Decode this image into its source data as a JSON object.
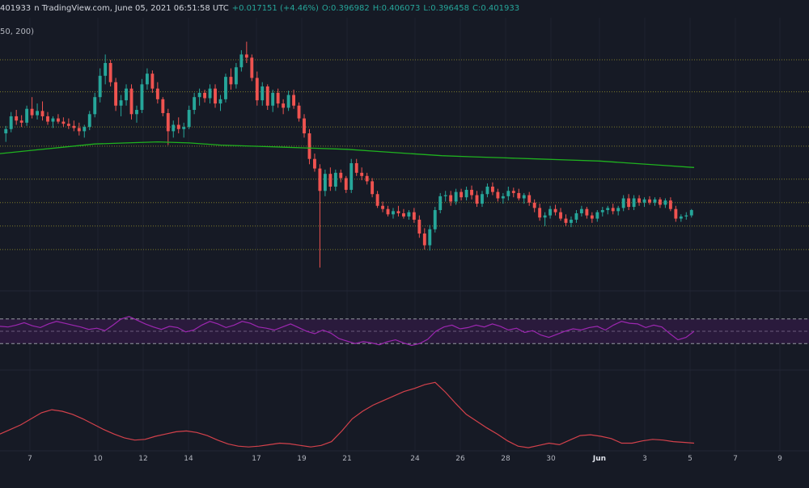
{
  "header": {
    "price_fragment": "401933",
    "source": "n TradingView.com, June 05, 2021 06:51:58 UTC",
    "change": "+0.017151 (+4.46%)",
    "o_label": "O:",
    "o_value": "0.396982",
    "h_label": "H:",
    "h_value": "0.406073",
    "l_label": "L:",
    "l_value": "0.396458",
    "c_label": "C:",
    "c_value": "0.401933"
  },
  "ma_label": "50, 200)",
  "colors": {
    "background": "#161a25",
    "up": "#26a69a",
    "down": "#ef5350",
    "ma200": "#1fb21f",
    "level_line": "#7d7a2b",
    "rsi": "#9c27b0",
    "rsi_band": "#2a1a3c",
    "lower_indicator": "#d3414b"
  },
  "chart_data": {
    "type": "candlestick",
    "x_tick_labels": [
      "7",
      "10",
      "12",
      "14",
      "17",
      "19",
      "21",
      "24",
      "26",
      "28",
      "30",
      "Jun",
      "3",
      "5",
      "7",
      "9"
    ],
    "price_panel": {
      "ylim": [
        0.33,
        0.565
      ],
      "horizontal_levels": [
        0.543,
        0.513,
        0.48,
        0.462,
        0.431,
        0.409,
        0.387,
        0.365
      ],
      "candles": [
        [
          0.474,
          0.481,
          0.466,
          0.478
        ],
        [
          0.478,
          0.494,
          0.475,
          0.49
        ],
        [
          0.49,
          0.496,
          0.482,
          0.486
        ],
        [
          0.486,
          0.491,
          0.48,
          0.484
        ],
        [
          0.484,
          0.5,
          0.481,
          0.497
        ],
        [
          0.497,
          0.508,
          0.488,
          0.491
        ],
        [
          0.491,
          0.502,
          0.487,
          0.495
        ],
        [
          0.495,
          0.504,
          0.486,
          0.49
        ],
        [
          0.49,
          0.494,
          0.482,
          0.485
        ],
        [
          0.485,
          0.49,
          0.479,
          0.488
        ],
        [
          0.488,
          0.492,
          0.483,
          0.485
        ],
        [
          0.485,
          0.489,
          0.48,
          0.483
        ],
        [
          0.483,
          0.488,
          0.478,
          0.481
        ],
        [
          0.481,
          0.486,
          0.476,
          0.479
        ],
        [
          0.479,
          0.484,
          0.472,
          0.476
        ],
        [
          0.476,
          0.482,
          0.47,
          0.48
        ],
        [
          0.48,
          0.495,
          0.477,
          0.492
        ],
        [
          0.492,
          0.512,
          0.489,
          0.508
        ],
        [
          0.508,
          0.535,
          0.503,
          0.528
        ],
        [
          0.528,
          0.548,
          0.52,
          0.54
        ],
        [
          0.54,
          0.543,
          0.518,
          0.522
        ],
        [
          0.522,
          0.526,
          0.495,
          0.5
        ],
        [
          0.5,
          0.51,
          0.49,
          0.505
        ],
        [
          0.505,
          0.52,
          0.5,
          0.516
        ],
        [
          0.516,
          0.52,
          0.487,
          0.492
        ],
        [
          0.492,
          0.5,
          0.484,
          0.496
        ],
        [
          0.496,
          0.525,
          0.493,
          0.52
        ],
        [
          0.52,
          0.535,
          0.515,
          0.53
        ],
        [
          0.53,
          0.533,
          0.512,
          0.516
        ],
        [
          0.516,
          0.522,
          0.502,
          0.506
        ],
        [
          0.506,
          0.508,
          0.49,
          0.493
        ],
        [
          0.493,
          0.497,
          0.463,
          0.476
        ],
        [
          0.476,
          0.486,
          0.47,
          0.482
        ],
        [
          0.482,
          0.489,
          0.474,
          0.478
        ],
        [
          0.478,
          0.484,
          0.47,
          0.48
        ],
        [
          0.48,
          0.5,
          0.478,
          0.496
        ],
        [
          0.496,
          0.512,
          0.492,
          0.508
        ],
        [
          0.508,
          0.516,
          0.5,
          0.512
        ],
        [
          0.512,
          0.515,
          0.503,
          0.507
        ],
        [
          0.507,
          0.52,
          0.502,
          0.516
        ],
        [
          0.516,
          0.52,
          0.498,
          0.502
        ],
        [
          0.502,
          0.51,
          0.495,
          0.506
        ],
        [
          0.506,
          0.53,
          0.503,
          0.527
        ],
        [
          0.527,
          0.535,
          0.515,
          0.52
        ],
        [
          0.52,
          0.54,
          0.516,
          0.536
        ],
        [
          0.536,
          0.552,
          0.532,
          0.548
        ],
        [
          0.548,
          0.56,
          0.54,
          0.545
        ],
        [
          0.545,
          0.548,
          0.523,
          0.526
        ],
        [
          0.526,
          0.532,
          0.5,
          0.505
        ],
        [
          0.505,
          0.522,
          0.5,
          0.518
        ],
        [
          0.518,
          0.52,
          0.496,
          0.5
        ],
        [
          0.5,
          0.515,
          0.494,
          0.512
        ],
        [
          0.512,
          0.516,
          0.498,
          0.502
        ],
        [
          0.502,
          0.506,
          0.492,
          0.498
        ],
        [
          0.498,
          0.514,
          0.495,
          0.51
        ],
        [
          0.51,
          0.515,
          0.497,
          0.5
        ],
        [
          0.5,
          0.503,
          0.485,
          0.488
        ],
        [
          0.488,
          0.492,
          0.47,
          0.474
        ],
        [
          0.474,
          0.478,
          0.445,
          0.45
        ],
        [
          0.45,
          0.455,
          0.438,
          0.441
        ],
        [
          0.441,
          0.445,
          0.348,
          0.42
        ],
        [
          0.42,
          0.44,
          0.415,
          0.436
        ],
        [
          0.436,
          0.442,
          0.42,
          0.424
        ],
        [
          0.424,
          0.44,
          0.42,
          0.437
        ],
        [
          0.437,
          0.44,
          0.428,
          0.432
        ],
        [
          0.432,
          0.434,
          0.418,
          0.421
        ],
        [
          0.421,
          0.45,
          0.418,
          0.446
        ],
        [
          0.446,
          0.45,
          0.434,
          0.437
        ],
        [
          0.437,
          0.442,
          0.43,
          0.434
        ],
        [
          0.434,
          0.437,
          0.426,
          0.429
        ],
        [
          0.429,
          0.432,
          0.414,
          0.417
        ],
        [
          0.417,
          0.42,
          0.404,
          0.406
        ],
        [
          0.406,
          0.41,
          0.4,
          0.403
        ],
        [
          0.403,
          0.406,
          0.396,
          0.398
        ],
        [
          0.398,
          0.404,
          0.394,
          0.401
        ],
        [
          0.401,
          0.406,
          0.396,
          0.399
        ],
        [
          0.399,
          0.403,
          0.394,
          0.396
        ],
        [
          0.396,
          0.402,
          0.393,
          0.4
        ],
        [
          0.4,
          0.404,
          0.39,
          0.393
        ],
        [
          0.393,
          0.397,
          0.376,
          0.38
        ],
        [
          0.38,
          0.385,
          0.365,
          0.369
        ],
        [
          0.369,
          0.388,
          0.364,
          0.384
        ],
        [
          0.384,
          0.405,
          0.381,
          0.402
        ],
        [
          0.402,
          0.418,
          0.399,
          0.415
        ],
        [
          0.415,
          0.42,
          0.41,
          0.416
        ],
        [
          0.416,
          0.42,
          0.406,
          0.41
        ],
        [
          0.41,
          0.422,
          0.407,
          0.419
        ],
        [
          0.419,
          0.422,
          0.411,
          0.414
        ],
        [
          0.414,
          0.424,
          0.411,
          0.421
        ],
        [
          0.421,
          0.425,
          0.412,
          0.416
        ],
        [
          0.416,
          0.42,
          0.405,
          0.408
        ],
        [
          0.408,
          0.42,
          0.405,
          0.417
        ],
        [
          0.417,
          0.427,
          0.414,
          0.424
        ],
        [
          0.424,
          0.428,
          0.416,
          0.419
        ],
        [
          0.419,
          0.422,
          0.41,
          0.413
        ],
        [
          0.413,
          0.418,
          0.408,
          0.415
        ],
        [
          0.415,
          0.424,
          0.411,
          0.42
        ],
        [
          0.42,
          0.423,
          0.414,
          0.418
        ],
        [
          0.418,
          0.422,
          0.411,
          0.413
        ],
        [
          0.413,
          0.418,
          0.408,
          0.416
        ],
        [
          0.416,
          0.419,
          0.406,
          0.409
        ],
        [
          0.409,
          0.412,
          0.4,
          0.404
        ],
        [
          0.404,
          0.408,
          0.392,
          0.395
        ],
        [
          0.395,
          0.4,
          0.387,
          0.397
        ],
        [
          0.397,
          0.406,
          0.394,
          0.403
        ],
        [
          0.403,
          0.407,
          0.397,
          0.4
        ],
        [
          0.4,
          0.404,
          0.392,
          0.394
        ],
        [
          0.394,
          0.398,
          0.387,
          0.39
        ],
        [
          0.39,
          0.396,
          0.386,
          0.393
        ],
        [
          0.393,
          0.402,
          0.39,
          0.399
        ],
        [
          0.399,
          0.406,
          0.396,
          0.403
        ],
        [
          0.403,
          0.405,
          0.394,
          0.397
        ],
        [
          0.397,
          0.4,
          0.39,
          0.394
        ],
        [
          0.394,
          0.402,
          0.391,
          0.4
        ],
        [
          0.4,
          0.405,
          0.396,
          0.402
        ],
        [
          0.402,
          0.406,
          0.398,
          0.404
        ],
        [
          0.404,
          0.408,
          0.398,
          0.401
        ],
        [
          0.401,
          0.406,
          0.397,
          0.404
        ],
        [
          0.404,
          0.416,
          0.401,
          0.413
        ],
        [
          0.413,
          0.417,
          0.402,
          0.405
        ],
        [
          0.405,
          0.416,
          0.402,
          0.413
        ],
        [
          0.413,
          0.416,
          0.406,
          0.409
        ],
        [
          0.409,
          0.414,
          0.405,
          0.412
        ],
        [
          0.412,
          0.415,
          0.407,
          0.409
        ],
        [
          0.409,
          0.414,
          0.406,
          0.412
        ],
        [
          0.412,
          0.414,
          0.404,
          0.407
        ],
        [
          0.407,
          0.413,
          0.404,
          0.411
        ],
        [
          0.411,
          0.414,
          0.401,
          0.403
        ],
        [
          0.403,
          0.406,
          0.391,
          0.394
        ],
        [
          0.394,
          0.398,
          0.391,
          0.396
        ],
        [
          0.396,
          0.4,
          0.393,
          0.397
        ],
        [
          0.397,
          0.403,
          0.395,
          0.402
        ]
      ],
      "ma200": [
        0.455,
        0.458,
        0.461,
        0.464,
        0.465,
        0.466,
        0.465,
        0.463,
        0.462,
        0.461,
        0.46,
        0.459,
        0.457,
        0.455,
        0.453,
        0.452,
        0.451,
        0.45,
        0.449,
        0.448,
        0.446,
        0.444,
        0.442
      ]
    },
    "rsi_panel": {
      "ylim": [
        0,
        100
      ],
      "band": [
        30,
        70
      ],
      "midline": 50,
      "values": [
        58,
        57,
        60,
        64,
        59,
        56,
        62,
        66,
        63,
        60,
        57,
        53,
        55,
        51,
        60,
        70,
        74,
        68,
        62,
        57,
        53,
        58,
        56,
        49,
        52,
        60,
        66,
        62,
        56,
        60,
        66,
        63,
        57,
        55,
        52,
        57,
        62,
        56,
        50,
        46,
        52,
        47,
        38,
        34,
        30,
        33,
        31,
        28,
        33,
        36,
        31,
        27,
        30,
        37,
        50,
        57,
        60,
        54,
        56,
        60,
        57,
        62,
        58,
        52,
        55,
        48,
        51,
        44,
        40,
        45,
        50,
        54,
        52,
        56,
        58,
        52,
        60,
        66,
        63,
        62,
        56,
        60,
        57,
        46,
        36,
        40,
        50
      ]
    },
    "lower_panel": {
      "ylim": [
        0,
        100
      ],
      "values": [
        20,
        26,
        32,
        40,
        48,
        52,
        50,
        46,
        40,
        33,
        26,
        20,
        15,
        12,
        13,
        17,
        20,
        23,
        24,
        22,
        18,
        12,
        7,
        4,
        3,
        4,
        6,
        8,
        7,
        5,
        3,
        5,
        10,
        24,
        40,
        50,
        58,
        64,
        70,
        76,
        80,
        85,
        88,
        75,
        60,
        46,
        37,
        28,
        20,
        11,
        4,
        2,
        5,
        8,
        6,
        12,
        18,
        19,
        17,
        14,
        8,
        8,
        11,
        13,
        12,
        10,
        9,
        8
      ]
    }
  }
}
